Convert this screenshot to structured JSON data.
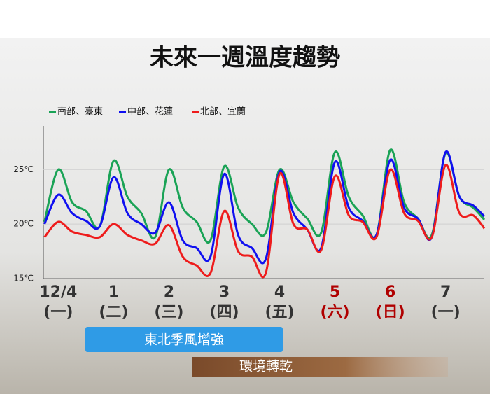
{
  "chart_data": {
    "type": "line",
    "title": "未來一週溫度趨勢",
    "x": [
      -0.25,
      0,
      0.25,
      0.5,
      0.75,
      1,
      1.25,
      1.5,
      1.75,
      2,
      2.25,
      2.5,
      2.75,
      3,
      3.25,
      3.5,
      3.75,
      4,
      4.25,
      4.5,
      4.75,
      5,
      5.25,
      5.5,
      5.75,
      6,
      6.25,
      6.5,
      6.75,
      7,
      7.25,
      7.5,
      7.7
    ],
    "series": [
      {
        "name": "南部、臺東",
        "color": "#1aa356",
        "values": [
          20.2,
          25,
          22,
          21.2,
          19.8,
          25.8,
          22.5,
          21,
          18.8,
          25,
          21.5,
          20.2,
          18.5,
          25.3,
          21.5,
          20,
          19.2,
          25,
          22,
          20.5,
          19.2,
          26.6,
          22.5,
          20.8,
          19,
          26.8,
          22,
          20.5,
          19,
          26.5,
          22.5,
          21.5,
          20.4
        ]
      },
      {
        "name": "中部、花蓮",
        "color": "#1010f0",
        "values": [
          20,
          22.7,
          21,
          20.3,
          19.8,
          24.3,
          21,
          20,
          19.2,
          22,
          18.5,
          17.8,
          17,
          24.6,
          19,
          17.8,
          16.8,
          24.8,
          21,
          19.5,
          17.8,
          25.7,
          21.5,
          20.3,
          19,
          25.9,
          21.5,
          20.5,
          18.8,
          26.6,
          22.5,
          21.7,
          20.7
        ]
      },
      {
        "name": "北部、宜蘭",
        "color": "#ee1c1c",
        "values": [
          18.8,
          20.2,
          19.3,
          19,
          18.8,
          20,
          19,
          18.5,
          18.2,
          19.9,
          17,
          16.2,
          15.5,
          21.2,
          17.5,
          17,
          15.5,
          24.6,
          20,
          19.5,
          17.6,
          24.4,
          20.8,
          20.2,
          18.8,
          25,
          21,
          20.3,
          18.8,
          25.4,
          21,
          20.8,
          19.6
        ]
      }
    ],
    "xlim": [
      -0.27,
      7.7
    ],
    "xticks": [
      {
        "value": 0,
        "label": "12/4"
      },
      1,
      2,
      3,
      4,
      5,
      6,
      7
    ],
    "xtick_sublabels": [
      "(一)",
      "(二)",
      "(三)",
      "(四)",
      "(五)",
      "(六)",
      "(日)",
      "(一)"
    ],
    "xtick_colors": [
      "#333333",
      "#333333",
      "#333333",
      "#333333",
      "#333333",
      "#b00000",
      "#b00000",
      "#333333"
    ],
    "ylim": [
      15,
      29
    ],
    "yticks": [
      {
        "value": 15,
        "label": "15℃"
      },
      {
        "value": 20,
        "label": "20℃"
      },
      {
        "value": 25,
        "label": "25℃"
      }
    ],
    "grid": true,
    "annotations": [
      "東北季風增強",
      "環境轉乾"
    ]
  }
}
